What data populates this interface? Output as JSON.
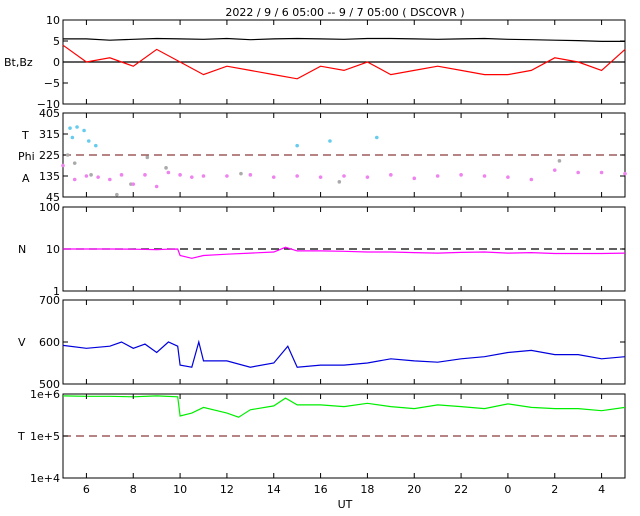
{
  "header": {
    "title": "2022 /  9 /  6   05:00  --   9 /  7   05:00 ( DSCOVR )"
  },
  "x_axis": {
    "label": "UT",
    "ticks": [
      {
        "t": 6,
        "label": "6"
      },
      {
        "t": 8,
        "label": "8"
      },
      {
        "t": 10,
        "label": "10"
      },
      {
        "t": 12,
        "label": "12"
      },
      {
        "t": 14,
        "label": "14"
      },
      {
        "t": 16,
        "label": "16"
      },
      {
        "t": 18,
        "label": "18"
      },
      {
        "t": 20,
        "label": "20"
      },
      {
        "t": 22,
        "label": "22"
      },
      {
        "t": 24,
        "label": "0"
      },
      {
        "t": 26,
        "label": "2"
      },
      {
        "t": 28,
        "label": "4"
      }
    ]
  },
  "colors": {
    "bt": "#000000",
    "bz": "#ff0000",
    "theta": "#66ccee",
    "phi": "#aaaaaa",
    "phi_angle": "#ee82ee",
    "density": "#ff00ff",
    "speed": "#0000dd",
    "temperature": "#00ee00",
    "reference_line": "#8b3a3a"
  },
  "chart_data": [
    {
      "type": "line",
      "panel": "magnetic-field",
      "ylabel": "Bt,Bz",
      "ylim": [
        -10,
        10
      ],
      "xlim": [
        5,
        29
      ],
      "yticks": [
        {
          "v": 10,
          "label": "10"
        },
        {
          "v": 5,
          "label": "5"
        },
        {
          "v": 0,
          "label": "0"
        },
        {
          "v": -5,
          "label": "−5"
        },
        {
          "v": -10,
          "label": "−10"
        }
      ],
      "reference_lines": [
        {
          "y": 0,
          "style": "solid",
          "color": "#000000"
        }
      ],
      "series": [
        {
          "key": "bt",
          "x": [
            5,
            6,
            7,
            8,
            9,
            10,
            11,
            12,
            13,
            14,
            15,
            16,
            17,
            18,
            19,
            20,
            21,
            22,
            23,
            24,
            25,
            26,
            27,
            28,
            29
          ],
          "values": [
            5.5,
            5.5,
            5.2,
            5.4,
            5.6,
            5.5,
            5.4,
            5.6,
            5.3,
            5.5,
            5.6,
            5.5,
            5.4,
            5.6,
            5.6,
            5.5,
            5.4,
            5.5,
            5.6,
            5.4,
            5.3,
            5.2,
            5.1,
            4.9,
            4.9
          ]
        },
        {
          "key": "bz",
          "x": [
            5,
            6,
            7,
            8,
            9,
            10,
            11,
            12,
            13,
            14,
            15,
            16,
            17,
            18,
            19,
            20,
            21,
            22,
            23,
            24,
            25,
            26,
            27,
            28,
            29
          ],
          "values": [
            4,
            0,
            1,
            -1,
            3,
            0,
            -3,
            -1,
            -2,
            -3,
            -4,
            -1,
            -2,
            0,
            -3,
            -2,
            -1,
            -2,
            -3,
            -3,
            -2,
            1,
            0,
            -2,
            3
          ]
        }
      ]
    },
    {
      "type": "scatter",
      "panel": "angles",
      "ylabels": [
        "T",
        "Phi",
        "A"
      ],
      "ylim": [
        45,
        405
      ],
      "xlim": [
        5,
        29
      ],
      "yticks": [
        {
          "v": 405,
          "label": "405"
        },
        {
          "v": 315,
          "label": "315"
        },
        {
          "v": 225,
          "label": "225"
        },
        {
          "v": 135,
          "label": "135"
        },
        {
          "v": 45,
          "label": "45"
        }
      ],
      "reference_lines": [
        {
          "y": 225,
          "style": "dashed",
          "color": "#8b3a3a"
        }
      ],
      "series": [
        {
          "key": "theta",
          "x": [
            5.3,
            5.4,
            5.6,
            5.9,
            6.1,
            6.4,
            15,
            16.4,
            18.4
          ],
          "values": [
            340,
            300,
            345,
            330,
            285,
            265,
            265,
            285,
            300
          ]
        },
        {
          "key": "phi",
          "x": [
            5.2,
            5.5,
            6.2,
            7.3,
            7.9,
            8.6,
            9.4,
            12.6,
            16.8,
            26.2
          ],
          "values": [
            225,
            190,
            140,
            55,
            100,
            215,
            170,
            145,
            110,
            200
          ]
        },
        {
          "key": "phi_angle",
          "x": [
            5,
            5.5,
            6,
            6.5,
            7,
            7.5,
            8,
            8.5,
            9,
            9.5,
            10,
            10.5,
            11,
            12,
            13,
            14,
            15,
            16,
            17,
            18,
            19,
            20,
            21,
            22,
            23,
            24,
            25,
            26,
            27,
            28,
            29
          ],
          "values": [
            180,
            120,
            135,
            130,
            120,
            140,
            100,
            140,
            90,
            150,
            140,
            130,
            135,
            135,
            140,
            130,
            135,
            130,
            135,
            130,
            140,
            125,
            135,
            140,
            135,
            130,
            120,
            160,
            150,
            150,
            145
          ]
        }
      ]
    },
    {
      "type": "line",
      "panel": "density",
      "ylabel": "N",
      "yscale": "log",
      "ylim": [
        1,
        100
      ],
      "xlim": [
        5,
        29
      ],
      "yticks": [
        {
          "v": 100,
          "label": "100"
        },
        {
          "v": 10,
          "label": "10"
        },
        {
          "v": 1,
          "label": "1"
        }
      ],
      "reference_lines": [
        {
          "y": 10,
          "style": "dashed",
          "color": "#000000"
        }
      ],
      "series": [
        {
          "key": "density",
          "x": [
            5,
            6,
            7,
            8,
            9,
            9.5,
            9.9,
            10,
            10.5,
            11,
            12,
            13,
            14,
            14.5,
            15,
            16,
            17,
            18,
            19,
            20,
            21,
            22,
            23,
            24,
            25,
            26,
            27,
            28,
            29
          ],
          "values": [
            10,
            10,
            10,
            9.9,
            9.7,
            9.9,
            10,
            7,
            6,
            7,
            7.5,
            8,
            8.5,
            11,
            9,
            9,
            8.8,
            8.5,
            8.5,
            8.2,
            8,
            8.3,
            8.5,
            8,
            8.2,
            7.8,
            7.8,
            7.8,
            8
          ]
        }
      ]
    },
    {
      "type": "line",
      "panel": "speed",
      "ylabel": "V",
      "ylim": [
        500,
        700
      ],
      "xlim": [
        5,
        29
      ],
      "yticks": [
        {
          "v": 700,
          "label": "700"
        },
        {
          "v": 600,
          "label": "600"
        },
        {
          "v": 500,
          "label": "500"
        }
      ],
      "reference_lines": [],
      "series": [
        {
          "key": "speed",
          "x": [
            5,
            6,
            7,
            7.5,
            8,
            8.5,
            9,
            9.5,
            9.9,
            10,
            10.5,
            10.8,
            11,
            12,
            13,
            14,
            14.6,
            15,
            16,
            17,
            18,
            19,
            20,
            21,
            22,
            23,
            24,
            25,
            26,
            27,
            28,
            29
          ],
          "values": [
            592,
            585,
            590,
            600,
            585,
            595,
            575,
            600,
            590,
            545,
            540,
            600,
            555,
            555,
            540,
            550,
            590,
            540,
            545,
            545,
            550,
            560,
            555,
            552,
            560,
            565,
            575,
            580,
            570,
            570,
            560,
            565
          ]
        }
      ]
    },
    {
      "type": "line",
      "panel": "temperature",
      "ylabel": "T",
      "yscale": "log",
      "ylim": [
        10000,
        1000000
      ],
      "xlim": [
        5,
        29
      ],
      "yticks": [
        {
          "v": 1000000,
          "label": "1e+6"
        },
        {
          "v": 100000,
          "label": "1e+5"
        },
        {
          "v": 10000,
          "label": "1e+4"
        }
      ],
      "reference_lines": [
        {
          "y": 100000,
          "style": "dashed",
          "color": "#8b3a3a"
        }
      ],
      "series": [
        {
          "key": "temperature",
          "x": [
            5,
            6,
            7,
            8,
            9,
            9.9,
            10,
            10.5,
            11,
            12,
            12.5,
            13,
            14,
            14.5,
            15,
            16,
            17,
            18,
            19,
            20,
            21,
            22,
            23,
            24,
            25,
            26,
            27,
            28,
            29
          ],
          "values": [
            900000,
            880000,
            880000,
            860000,
            900000,
            860000,
            300000,
            350000,
            480000,
            350000,
            280000,
            420000,
            520000,
            800000,
            550000,
            550000,
            500000,
            600000,
            500000,
            450000,
            550000,
            500000,
            450000,
            580000,
            480000,
            450000,
            450000,
            400000,
            480000
          ]
        }
      ]
    }
  ]
}
